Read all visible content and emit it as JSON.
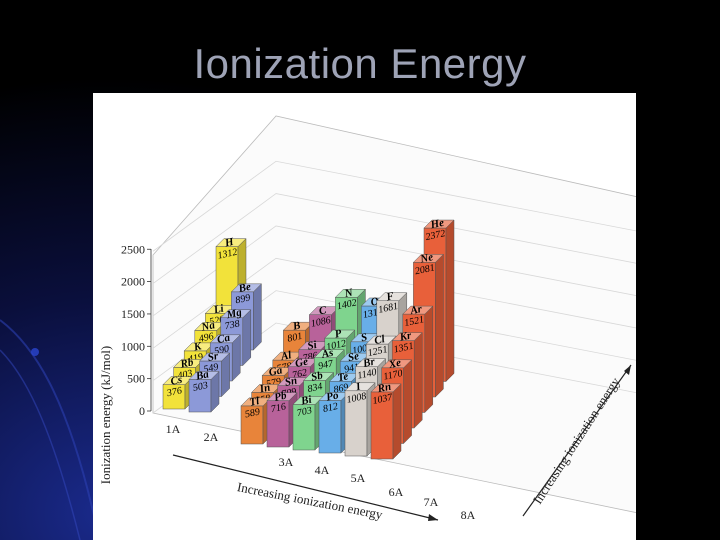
{
  "slide": {
    "title": "Ionization Energy"
  },
  "chart_data": {
    "type": "bar",
    "ylabel": "Ionization energy (kJ/mol)",
    "yticks": [
      0,
      500,
      1000,
      1500,
      2000,
      2500
    ],
    "ylim": [
      0,
      2500
    ],
    "xlabel": "Increasing ionization energy",
    "depth_label": "Increasing ionization energy",
    "groups": [
      {
        "name": "1A",
        "color": "#f2e23a",
        "elements": [
          {
            "symbol": "H",
            "value": 1312
          },
          {
            "symbol": "Li",
            "value": 520
          },
          {
            "symbol": "Na",
            "value": 496
          },
          {
            "symbol": "K",
            "value": 419
          },
          {
            "symbol": "Rb",
            "value": 403
          },
          {
            "symbol": "Cs",
            "value": 376
          }
        ]
      },
      {
        "name": "2A",
        "color": "#8c99d8",
        "elements": [
          {
            "symbol": "Be",
            "value": 899
          },
          {
            "symbol": "Mg",
            "value": 738
          },
          {
            "symbol": "Ca",
            "value": 590
          },
          {
            "symbol": "Sr",
            "value": 549
          },
          {
            "symbol": "Ba",
            "value": 503
          }
        ]
      },
      {
        "name": "3A",
        "color": "#e8843a",
        "elements": [
          {
            "symbol": "B",
            "value": 801
          },
          {
            "symbol": "Al",
            "value": 578
          },
          {
            "symbol": "Ga",
            "value": 579
          },
          {
            "symbol": "In",
            "value": 558
          },
          {
            "symbol": "Tl",
            "value": 589
          }
        ]
      },
      {
        "name": "4A",
        "color": "#b8629a",
        "elements": [
          {
            "symbol": "C",
            "value": 1086
          },
          {
            "symbol": "Si",
            "value": 786
          },
          {
            "symbol": "Ge",
            "value": 762
          },
          {
            "symbol": "Sn",
            "value": 709
          },
          {
            "symbol": "Pb",
            "value": 716
          }
        ]
      },
      {
        "name": "5A",
        "color": "#7fd48e",
        "elements": [
          {
            "symbol": "N",
            "value": 1402
          },
          {
            "symbol": "P",
            "value": 1012
          },
          {
            "symbol": "As",
            "value": 947
          },
          {
            "symbol": "Sb",
            "value": 834
          },
          {
            "symbol": "Bi",
            "value": 703
          }
        ]
      },
      {
        "name": "6A",
        "color": "#68aee8",
        "elements": [
          {
            "symbol": "O",
            "value": 1314
          },
          {
            "symbol": "S",
            "value": 1000
          },
          {
            "symbol": "Se",
            "value": 941
          },
          {
            "symbol": "Te",
            "value": 869
          },
          {
            "symbol": "Po",
            "value": 812
          }
        ]
      },
      {
        "name": "7A",
        "color": "#d8d2cc",
        "elements": [
          {
            "symbol": "F",
            "value": 1681
          },
          {
            "symbol": "Cl",
            "value": 1251
          },
          {
            "symbol": "Br",
            "value": 1140
          },
          {
            "symbol": "I",
            "value": 1008
          }
        ]
      },
      {
        "name": "8A",
        "color": "#e8603a",
        "elements": [
          {
            "symbol": "He",
            "value": 2372
          },
          {
            "symbol": "Ne",
            "value": 2081
          },
          {
            "symbol": "Ar",
            "value": 1521
          },
          {
            "symbol": "Kr",
            "value": 1351
          },
          {
            "symbol": "Xe",
            "value": 1170
          },
          {
            "symbol": "Rn",
            "value": 1037
          }
        ]
      }
    ]
  }
}
